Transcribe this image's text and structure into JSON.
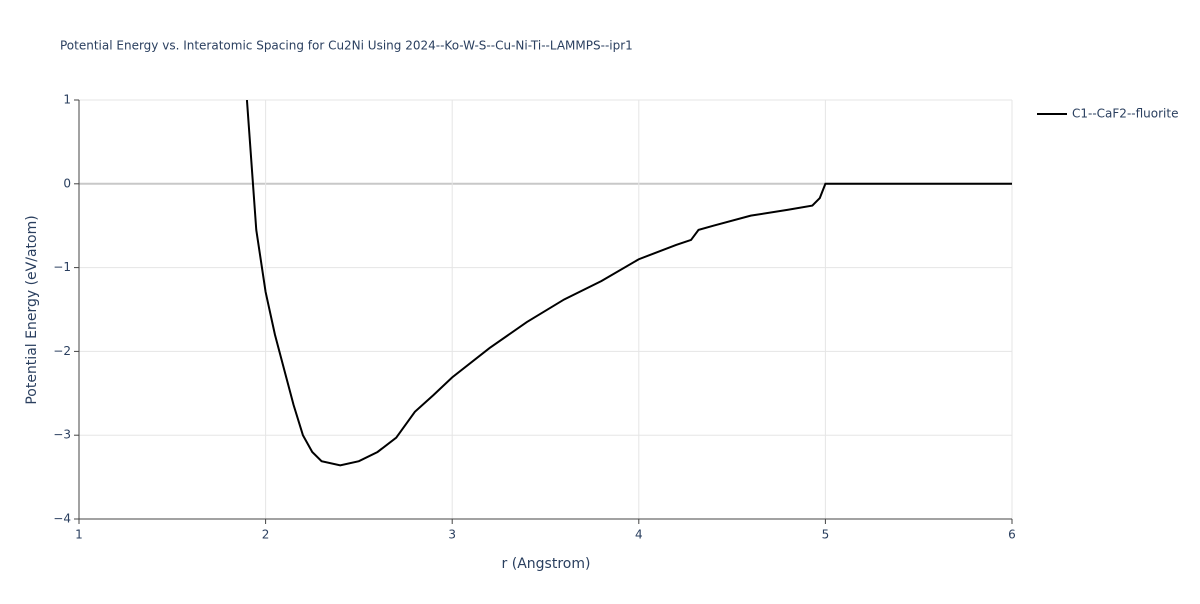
{
  "chart_data": {
    "type": "line",
    "title": "Potential Energy vs. Interatomic Spacing for Cu2Ni Using 2024--Ko-W-S--Cu-Ni-Ti--LAMMPS--ipr1",
    "x_label": "r (Angstrom)",
    "y_label": "Potential Energy (eV/atom)",
    "xlim": [
      1,
      6
    ],
    "ylim": [
      -4,
      1
    ],
    "xticks": [
      1,
      2,
      3,
      4,
      5,
      6
    ],
    "yticks": [
      {
        "value": -4,
        "label": "−4"
      },
      {
        "value": -3,
        "label": "−3"
      },
      {
        "value": -2,
        "label": "−2"
      },
      {
        "value": -1,
        "label": "−1"
      },
      0,
      1
    ],
    "grid": true,
    "legend_position": "right",
    "series": [
      {
        "name": "C1--CaF2--fluorite",
        "color": "#000000",
        "x": [
          1.9,
          1.95,
          2.0,
          2.05,
          2.1,
          2.15,
          2.2,
          2.25,
          2.3,
          2.4,
          2.5,
          2.6,
          2.7,
          2.8,
          2.9,
          3.0,
          3.2,
          3.4,
          3.6,
          3.8,
          4.0,
          4.2,
          4.28,
          4.32,
          4.4,
          4.6,
          4.8,
          4.93,
          4.97,
          5.0,
          6.0
        ],
        "values": [
          1,
          -0.55,
          -1.29,
          -1.8,
          -2.22,
          -2.64,
          -3.0,
          -3.2,
          -3.31,
          -3.36,
          -3.31,
          -3.2,
          -3.03,
          -2.72,
          -2.52,
          -2.31,
          -1.96,
          -1.65,
          -1.38,
          -1.16,
          -0.9,
          -0.73,
          -0.67,
          -0.55,
          -0.5,
          -0.38,
          -0.31,
          -0.26,
          -0.17,
          0,
          0
        ]
      }
    ]
  }
}
